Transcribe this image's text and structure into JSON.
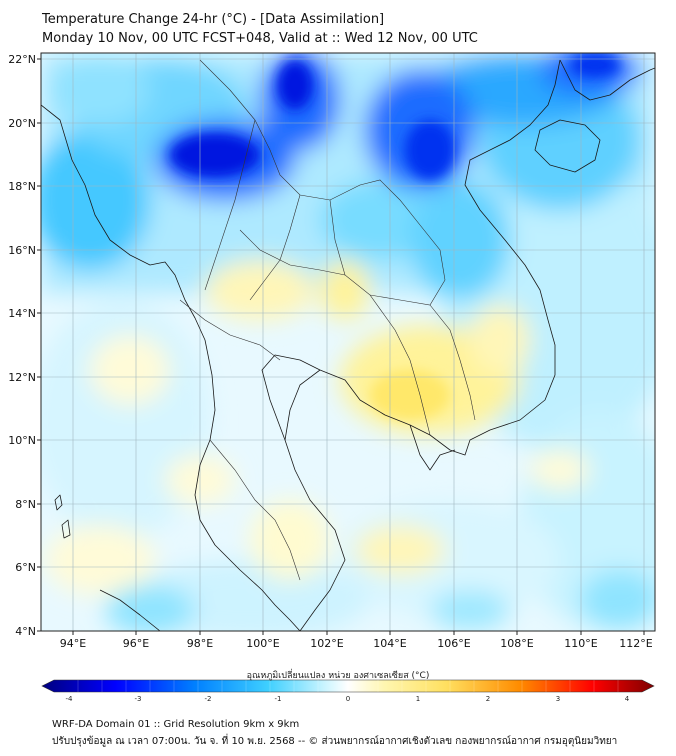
{
  "header": {
    "title_line1": "Temperature Change 24-hr (°C) - [Data Assimilation]",
    "title_line2": "Monday 10 Nov, 00 UTC FCST+048, Valid at :: Wed 12 Nov, 00 UTC"
  },
  "map": {
    "lat_labels": [
      "22°N",
      "20°N",
      "18°N",
      "16°N",
      "14°N",
      "12°N",
      "10°N",
      "8°N",
      "6°N",
      "4°N"
    ],
    "lon_labels": [
      "94°E",
      "96°E",
      "98°E",
      "100°E",
      "102°E",
      "104°E",
      "106°E",
      "108°E",
      "110°E",
      "112°E"
    ],
    "extent": {
      "lon_min": 93,
      "lon_max": 112.3,
      "lat_min": 4,
      "lat_max": 22.2
    }
  },
  "colorbar": {
    "label": "อุณหภูมิเปลี่ยนแปลง หน่วย องศาเซลเซียส (°C)",
    "ticks": [
      "-4",
      "-3",
      "-2",
      "-1",
      "0",
      "1",
      "2",
      "3",
      "4"
    ],
    "colors": [
      "#00007f",
      "#0000ff",
      "#0080ff",
      "#3fd0ff",
      "#b0f0ff",
      "#ffffff",
      "#fff6b0",
      "#ffe060",
      "#ff8c00",
      "#ff0000",
      "#7f0000"
    ]
  },
  "footer": {
    "line1": "WRF-DA Domain 01 :: Grid Resolution 9km x 9km",
    "line2": "ปรับปรุงข้อมูล ณ เวลา 07:00น. วัน จ. ที่ 10 พ.ย. 2568 -- © ส่วนพยากรณ์อากาศเชิงตัวเลข กองพยากรณ์อากาศ กรมอุตุนิยมวิทยา"
  }
}
